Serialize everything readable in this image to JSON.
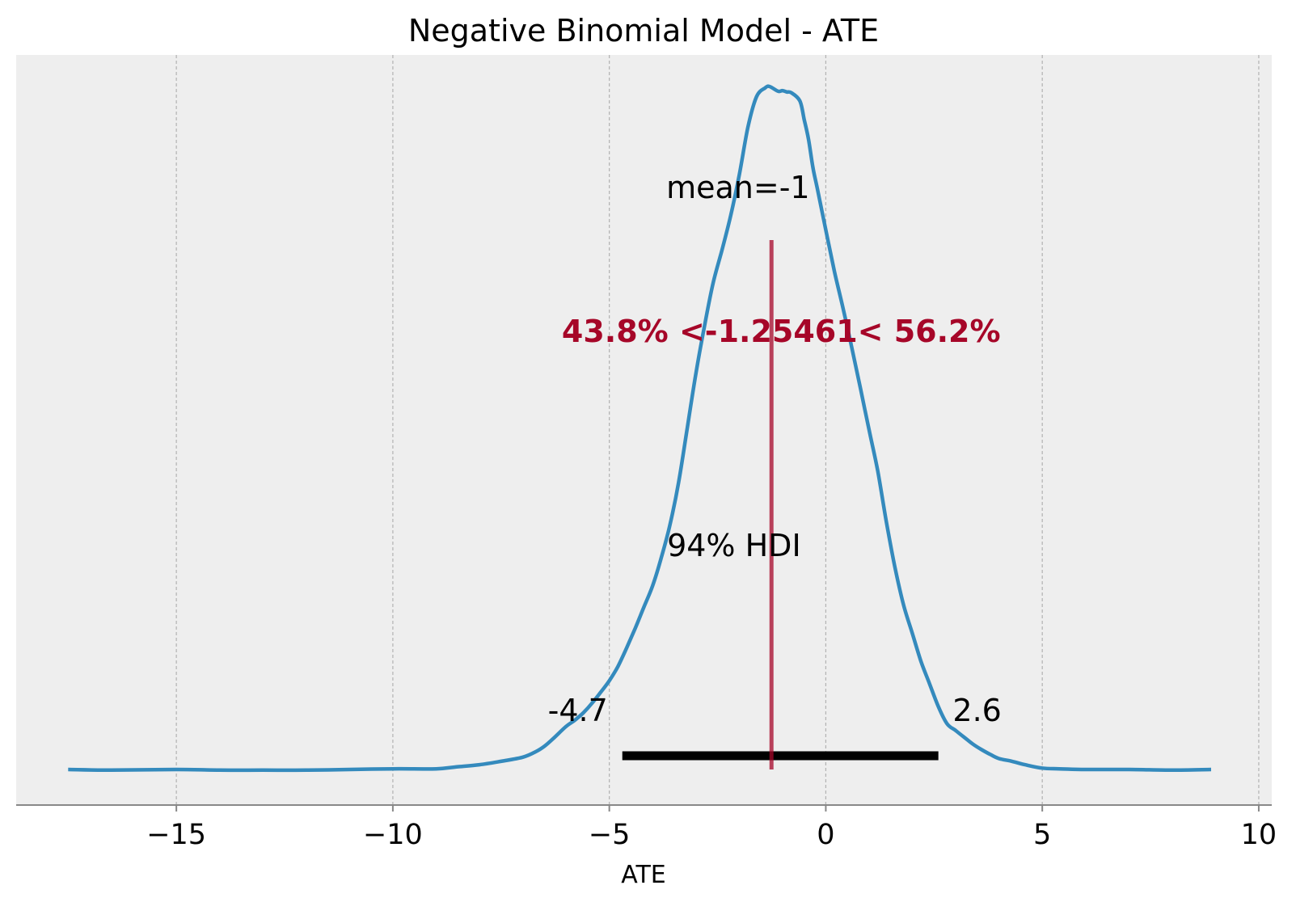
{
  "chart_data": {
    "type": "line",
    "title": "Negative Binomial Model - ATE",
    "xlabel": "ATE",
    "ylabel": "",
    "xlim": [
      -18.7,
      10.3
    ],
    "ylim": [
      0,
      1
    ],
    "grid": "x-only, dashed",
    "xticks": [
      -15,
      -10,
      -5,
      0,
      5,
      10
    ],
    "xtick_labels": [
      "−15",
      "−10",
      "−5",
      "0",
      "5",
      "10"
    ],
    "series": [
      {
        "kind": "kde",
        "x": [
          -17.5,
          -16.5,
          -15.0,
          -14.0,
          -13.0,
          -12.0,
          -11.0,
          -10.0,
          -9.0,
          -8.5,
          -8.0,
          -7.5,
          -7.0,
          -6.7,
          -6.5,
          -6.3,
          -6.0,
          -5.8,
          -5.6,
          -5.4,
          -5.2,
          -5.0,
          -4.8,
          -4.6,
          -4.4,
          -4.2,
          -4.0,
          -3.8,
          -3.6,
          -3.4,
          -3.2,
          -3.0,
          -2.8,
          -2.6,
          -2.4,
          -2.2,
          -2.0,
          -1.8,
          -1.6,
          -1.4,
          -1.3,
          -1.1,
          -1.0,
          -0.9,
          -0.8,
          -0.6,
          -0.5,
          -0.4,
          -0.3,
          -0.2,
          0.0,
          0.2,
          0.4,
          0.6,
          0.8,
          1.0,
          1.2,
          1.4,
          1.6,
          1.8,
          2.0,
          2.2,
          2.4,
          2.6,
          2.8,
          3.0,
          3.2,
          3.4,
          3.6,
          3.8,
          4.0,
          4.3,
          4.6,
          5.0,
          5.4,
          6.0,
          7.0,
          8.0,
          8.9
        ],
        "y": [
          0.0,
          -0.001,
          0.0,
          -0.001,
          -0.001,
          -0.001,
          0.0,
          0.001,
          0.001,
          0.004,
          0.007,
          0.012,
          0.018,
          0.026,
          0.034,
          0.045,
          0.063,
          0.072,
          0.083,
          0.097,
          0.113,
          0.13,
          0.151,
          0.178,
          0.207,
          0.238,
          0.269,
          0.31,
          0.358,
          0.42,
          0.5,
          0.58,
          0.65,
          0.713,
          0.76,
          0.81,
          0.87,
          0.94,
          0.985,
          0.998,
          1.0,
          0.993,
          0.994,
          0.992,
          0.991,
          0.979,
          0.952,
          0.923,
          0.882,
          0.852,
          0.79,
          0.729,
          0.675,
          0.618,
          0.558,
          0.497,
          0.437,
          0.362,
          0.295,
          0.24,
          0.199,
          0.158,
          0.125,
          0.092,
          0.067,
          0.057,
          0.047,
          0.037,
          0.029,
          0.022,
          0.016,
          0.012,
          0.007,
          0.002,
          0.001,
          0.0,
          0.0,
          -0.001,
          0.0
        ],
        "color": "#348ABD"
      }
    ],
    "hdi": {
      "label": "94% HDI",
      "low": -4.7,
      "high": 2.6,
      "low_label": "-4.7",
      "high_label": "2.6",
      "color": "#000000"
    },
    "mean": {
      "label": "mean=-1",
      "value": -1
    },
    "ref_val": {
      "value": -1.25461,
      "label": "43.8% <-1.25461< 56.2%",
      "color": "#A60628"
    },
    "colors": {
      "background": "#EEEEEE",
      "grid": "#B2B2B2",
      "axis": "#888888"
    }
  }
}
